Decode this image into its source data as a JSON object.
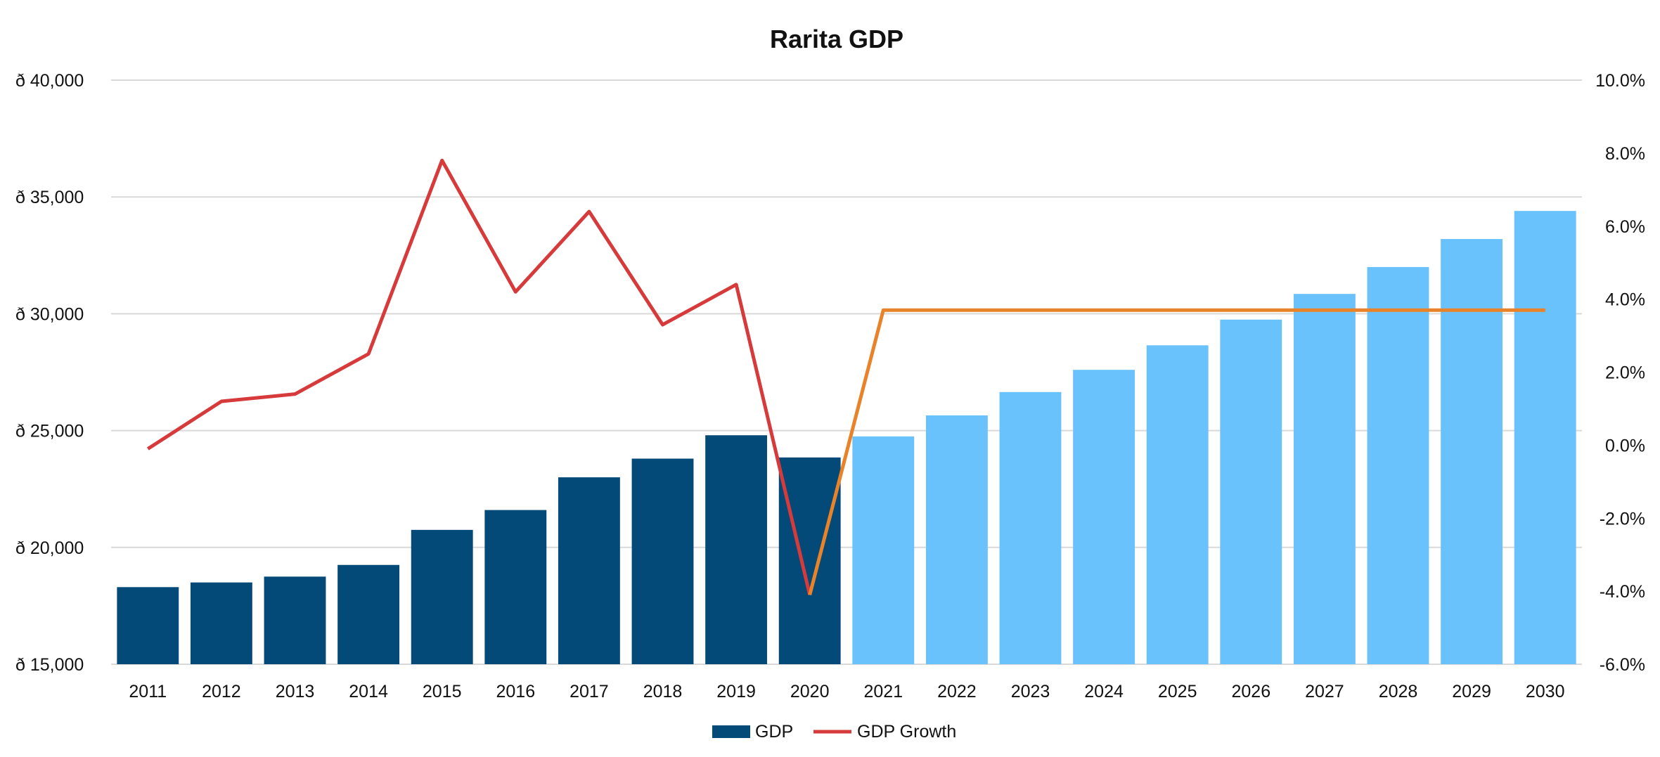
{
  "chart_data": {
    "type": "bar",
    "title": "Rarita GDP",
    "categories": [
      "2011",
      "2012",
      "2013",
      "2014",
      "2015",
      "2016",
      "2017",
      "2018",
      "2019",
      "2020",
      "2021",
      "2022",
      "2023",
      "2024",
      "2025",
      "2026",
      "2027",
      "2028",
      "2029",
      "2030"
    ],
    "series": [
      {
        "name": "GDP",
        "type": "bar",
        "axis": "left",
        "values": [
          18300,
          18500,
          18750,
          19250,
          20750,
          21600,
          23000,
          23800,
          24800,
          23850,
          24750,
          25650,
          26650,
          27600,
          28650,
          29750,
          30850,
          32000,
          33200,
          34400
        ],
        "colors": {
          "actual": "#044a78",
          "forecast": "#6ac2fc"
        },
        "forecast_start": "2021"
      },
      {
        "name": "GDP Growth",
        "type": "line",
        "axis": "right",
        "values": [
          -0.1,
          1.2,
          1.4,
          2.5,
          7.8,
          4.2,
          6.4,
          3.3,
          4.4,
          -4.1,
          3.7,
          3.7,
          3.7,
          3.7,
          3.7,
          3.7,
          3.7,
          3.7,
          3.7,
          3.7
        ],
        "colors": {
          "actual": "#d63a3a",
          "forecast": "#e8832a"
        }
      }
    ],
    "y_left": {
      "ylim": [
        15000,
        40000
      ],
      "ticks": [
        "ð 15,000",
        "ð 20,000",
        "ð 25,000",
        "ð 30,000",
        "ð 35,000",
        "ð 40,000"
      ],
      "tick_values": [
        15000,
        20000,
        25000,
        30000,
        35000,
        40000
      ]
    },
    "y_right": {
      "ylim": [
        -6,
        10
      ],
      "ticks": [
        "-6.0%",
        "-4.0%",
        "-2.0%",
        "0.0%",
        "2.0%",
        "4.0%",
        "6.0%",
        "8.0%",
        "10.0%"
      ],
      "tick_values": [
        -6,
        -4,
        -2,
        0,
        2,
        4,
        6,
        8,
        10
      ]
    },
    "grid": true,
    "gridline_color": "#d9d9d9",
    "legend_position": "bottom-center",
    "legend": [
      {
        "label": "GDP",
        "kind": "bar",
        "color": "#044a78"
      },
      {
        "label": "GDP Growth",
        "kind": "line",
        "color": "#d63a3a"
      }
    ]
  }
}
